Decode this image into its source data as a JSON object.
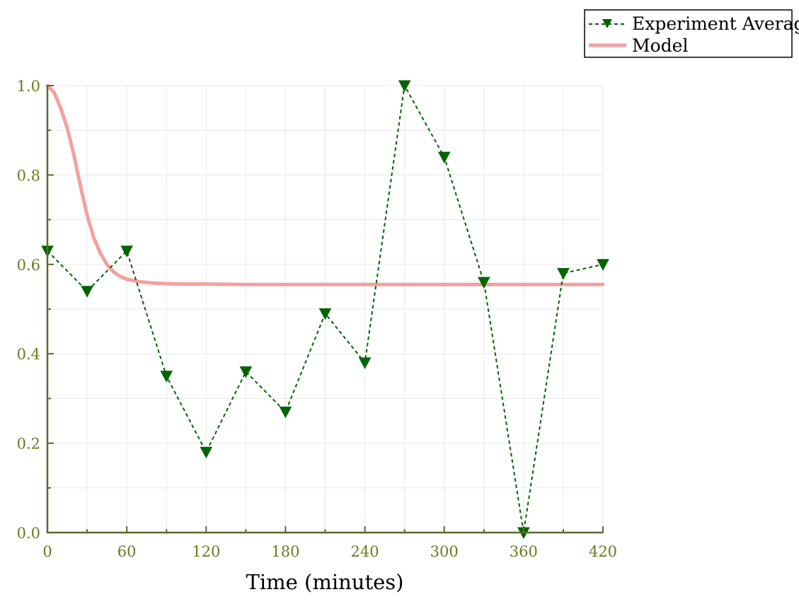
{
  "chart_data": {
    "type": "line",
    "title": "",
    "xlabel": "Time (minutes)",
    "ylabel": "",
    "xlim": [
      0,
      420
    ],
    "ylim": [
      0.0,
      1.0
    ],
    "x_ticks": [
      0,
      60,
      120,
      180,
      240,
      300,
      360,
      420
    ],
    "y_ticks": [
      "0.0",
      "0.2",
      "0.4",
      "0.6",
      "0.8",
      "1.0"
    ],
    "grid": true,
    "legend_position": "top-right",
    "series": [
      {
        "name": "Experiment Average",
        "style": "dashed-triangle-down",
        "color": "#006400",
        "x": [
          0,
          30,
          60,
          90,
          120,
          150,
          180,
          210,
          240,
          270,
          300,
          330,
          360,
          390,
          420
        ],
        "y": [
          0.63,
          0.54,
          0.63,
          0.35,
          0.18,
          0.36,
          0.27,
          0.49,
          0.38,
          1.0,
          0.84,
          0.56,
          0.0,
          0.58,
          0.6
        ]
      },
      {
        "name": "Model",
        "style": "solid",
        "color": "#f4a0a0",
        "x": [
          0,
          5,
          10,
          15,
          20,
          25,
          30,
          35,
          40,
          45,
          50,
          55,
          60,
          70,
          80,
          90,
          100,
          120,
          150,
          180,
          210,
          240,
          270,
          300,
          330,
          360,
          390,
          420
        ],
        "y": [
          1.0,
          0.985,
          0.95,
          0.905,
          0.845,
          0.775,
          0.71,
          0.66,
          0.625,
          0.6,
          0.583,
          0.573,
          0.567,
          0.561,
          0.558,
          0.557,
          0.556,
          0.556,
          0.555,
          0.555,
          0.555,
          0.555,
          0.555,
          0.555,
          0.555,
          0.555,
          0.555,
          0.555
        ]
      }
    ],
    "colors": {
      "axis": "#556b2f",
      "tick_label": "#6b7a1f",
      "grid": "#e8e8e8"
    }
  }
}
